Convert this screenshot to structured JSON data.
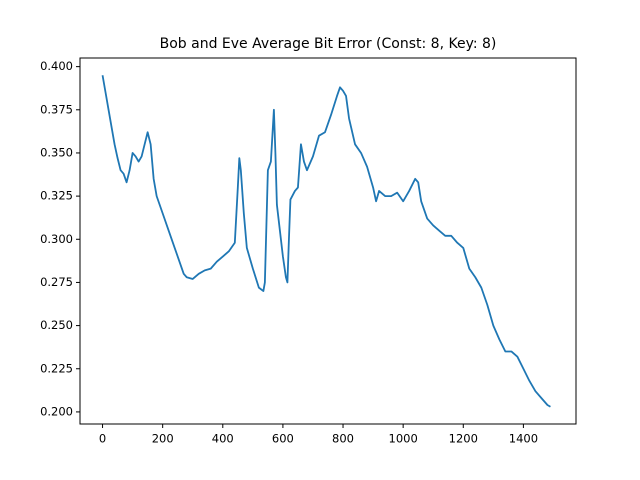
{
  "chart_data": {
    "type": "line",
    "title": "Bob and Eve Average Bit Error (Const: 8, Key: 8)",
    "x": [
      0,
      10,
      20,
      30,
      40,
      50,
      60,
      70,
      80,
      90,
      100,
      110,
      120,
      130,
      140,
      150,
      160,
      170,
      180,
      200,
      220,
      240,
      260,
      270,
      280,
      300,
      320,
      340,
      360,
      380,
      400,
      420,
      440,
      450,
      455,
      460,
      470,
      480,
      500,
      520,
      535,
      540,
      550,
      560,
      565,
      570,
      575,
      580,
      590,
      600,
      610,
      615,
      620,
      625,
      640,
      650,
      660,
      670,
      680,
      700,
      720,
      740,
      760,
      780,
      790,
      800,
      810,
      820,
      840,
      860,
      880,
      900,
      910,
      920,
      940,
      960,
      980,
      1000,
      1020,
      1040,
      1050,
      1060,
      1080,
      1100,
      1120,
      1140,
      1160,
      1180,
      1200,
      1220,
      1240,
      1260,
      1280,
      1300,
      1320,
      1340,
      1360,
      1380,
      1400,
      1420,
      1440,
      1460,
      1480,
      1490
    ],
    "series": [
      {
        "color": "#1f77b4",
        "values": [
          0.395,
          0.385,
          0.375,
          0.365,
          0.355,
          0.347,
          0.34,
          0.338,
          0.333,
          0.34,
          0.35,
          0.348,
          0.345,
          0.348,
          0.355,
          0.362,
          0.355,
          0.335,
          0.325,
          0.315,
          0.305,
          0.295,
          0.285,
          0.28,
          0.278,
          0.277,
          0.28,
          0.282,
          0.283,
          0.287,
          0.29,
          0.293,
          0.298,
          0.33,
          0.347,
          0.34,
          0.315,
          0.295,
          0.283,
          0.272,
          0.27,
          0.275,
          0.34,
          0.345,
          0.36,
          0.375,
          0.35,
          0.32,
          0.305,
          0.29,
          0.278,
          0.275,
          0.3,
          0.323,
          0.328,
          0.33,
          0.355,
          0.345,
          0.34,
          0.348,
          0.36,
          0.362,
          0.372,
          0.383,
          0.388,
          0.386,
          0.383,
          0.37,
          0.355,
          0.35,
          0.342,
          0.33,
          0.322,
          0.328,
          0.325,
          0.325,
          0.327,
          0.322,
          0.328,
          0.335,
          0.333,
          0.322,
          0.312,
          0.308,
          0.305,
          0.302,
          0.302,
          0.298,
          0.295,
          0.283,
          0.278,
          0.272,
          0.262,
          0.25,
          0.242,
          0.235,
          0.235,
          0.232,
          0.225,
          0.218,
          0.212,
          0.208,
          0.204,
          0.203
        ]
      }
    ],
    "xlim": [
      -75,
      1575
    ],
    "ylim": [
      0.193,
      0.405
    ],
    "xticks": [
      0,
      200,
      400,
      600,
      800,
      1000,
      1200,
      1400
    ],
    "yticks": [
      {
        "value": 0.2,
        "label": "0.200"
      },
      0.225,
      {
        "value": 0.25,
        "label": "0.250"
      },
      0.275,
      {
        "value": 0.3,
        "label": "0.300"
      },
      0.325,
      {
        "value": 0.35,
        "label": "0.350"
      },
      0.375,
      {
        "value": 0.4,
        "label": "0.400"
      }
    ]
  }
}
